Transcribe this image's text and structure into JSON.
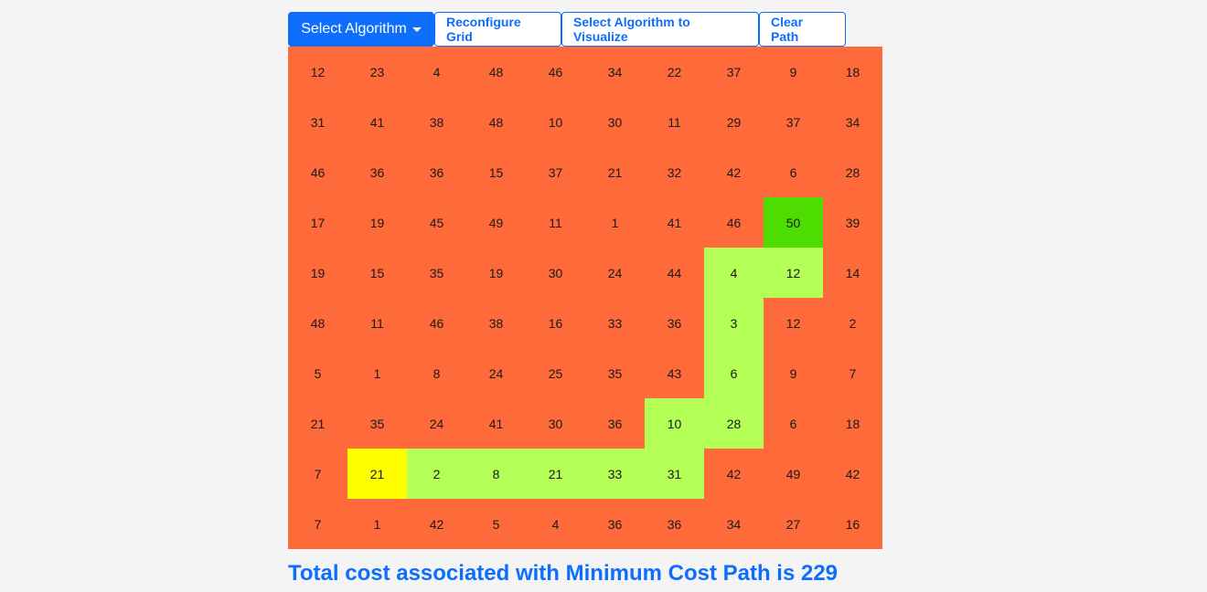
{
  "toolbar": {
    "select_algorithm_label": "Select Algorithm",
    "reconfigure_label": "Reconfigure Grid",
    "visualize_label": "Select Algorithm to Visualize",
    "clear_label": "Clear Path"
  },
  "colors": {
    "primary": "#0d6efd",
    "cell_default": "#ff6a3a",
    "cell_path": "#b3ff55",
    "cell_start": "#ffff00",
    "cell_end": "#4ddd00"
  },
  "grid": {
    "rows": [
      [
        12,
        23,
        4,
        48,
        46,
        34,
        22,
        37,
        9,
        18
      ],
      [
        31,
        41,
        38,
        48,
        10,
        30,
        11,
        29,
        37,
        34
      ],
      [
        46,
        36,
        36,
        15,
        37,
        21,
        32,
        42,
        6,
        28
      ],
      [
        17,
        19,
        45,
        49,
        11,
        1,
        41,
        46,
        50,
        39
      ],
      [
        19,
        15,
        35,
        19,
        30,
        24,
        44,
        4,
        12,
        14
      ],
      [
        48,
        11,
        46,
        38,
        16,
        33,
        36,
        3,
        12,
        2
      ],
      [
        5,
        1,
        8,
        24,
        25,
        35,
        43,
        6,
        9,
        7
      ],
      [
        21,
        35,
        24,
        41,
        30,
        36,
        10,
        28,
        6,
        18
      ],
      [
        7,
        21,
        2,
        8,
        21,
        33,
        31,
        42,
        49,
        42
      ],
      [
        7,
        1,
        42,
        5,
        4,
        36,
        36,
        34,
        27,
        16
      ]
    ],
    "start": [
      8,
      1
    ],
    "end": [
      3,
      8
    ],
    "path": [
      [
        8,
        2
      ],
      [
        8,
        3
      ],
      [
        8,
        4
      ],
      [
        8,
        5
      ],
      [
        8,
        6
      ],
      [
        7,
        6
      ],
      [
        7,
        7
      ],
      [
        6,
        7
      ],
      [
        5,
        7
      ],
      [
        4,
        7
      ],
      [
        4,
        8
      ]
    ]
  },
  "result_text": "Total cost associated with Minimum Cost Path is 229"
}
